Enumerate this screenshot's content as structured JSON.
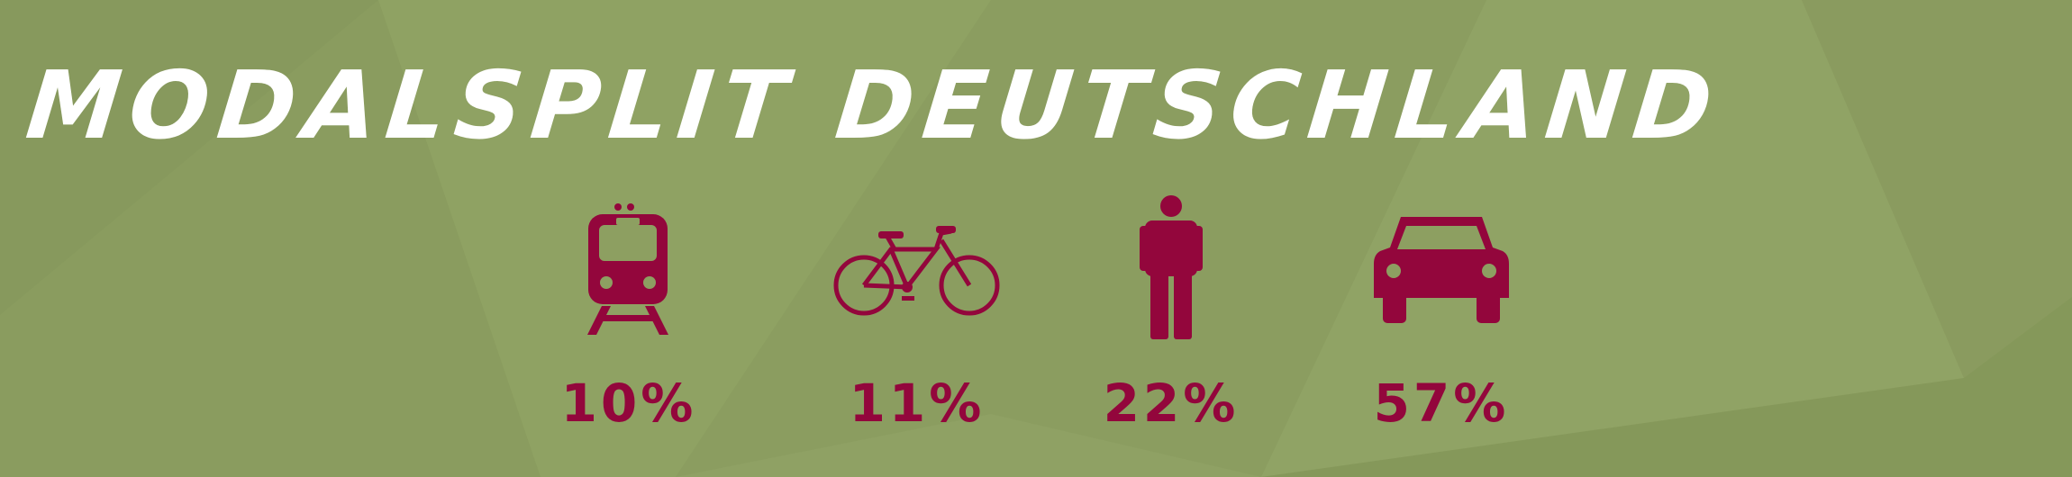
{
  "title": "MODALSPLIT DEUTSCHLAND",
  "colors": {
    "background": "#8d9f61",
    "accent": "#93063c",
    "title": "#ffffff"
  },
  "modes": [
    {
      "icon": "train-icon",
      "value": 10,
      "label": "10%"
    },
    {
      "icon": "bicycle-icon",
      "value": 11,
      "label": "11%"
    },
    {
      "icon": "pedestrian-icon",
      "value": 22,
      "label": "22%"
    },
    {
      "icon": "car-icon",
      "value": 57,
      "label": "57%"
    }
  ]
}
